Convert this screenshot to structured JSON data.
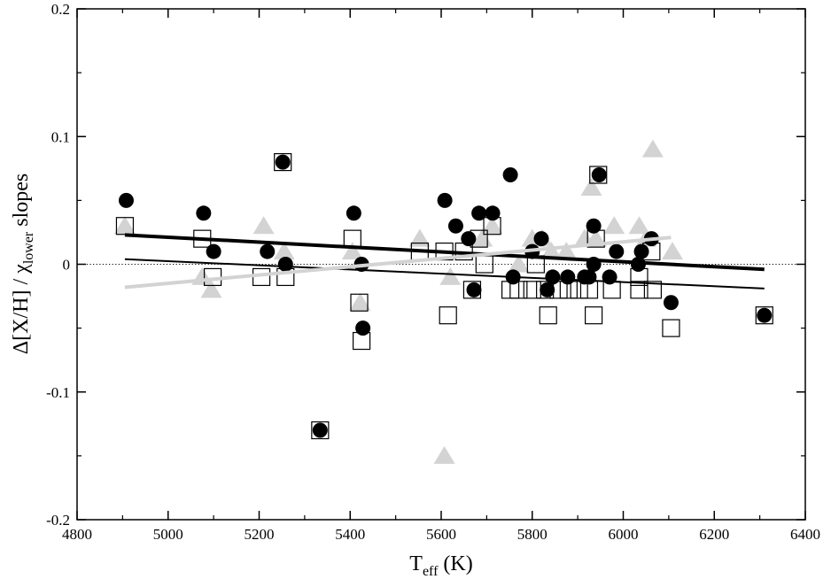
{
  "chart_data": {
    "type": "scatter",
    "xlabel": {
      "main": "T",
      "sub": "eff",
      "unit": " (K)"
    },
    "ylabel": {
      "pre": "Δ[X/H]  /  χ",
      "sub": "lower",
      "post": "  slopes"
    },
    "xlim": [
      4800,
      6400
    ],
    "ylim": [
      -0.2,
      0.2
    ],
    "x_ticks": [
      4800,
      5000,
      5200,
      5400,
      5600,
      5800,
      6000,
      6200,
      6400
    ],
    "y_ticks": [
      -0.2,
      -0.1,
      0,
      0.1,
      0.2
    ],
    "x_tick_labels": [
      "4800",
      "5000",
      "5200",
      "5400",
      "5600",
      "5800",
      "6000",
      "6200",
      "6400"
    ],
    "y_tick_labels": [
      "-0.2",
      "-0.1",
      "0",
      "0.1",
      "0.2"
    ],
    "zero_line": {
      "y": 0,
      "style": "dotted"
    },
    "series": [
      {
        "marker": "circle-filled",
        "color": "#000000",
        "points": [
          [
            4908,
            0.05
          ],
          [
            5078,
            0.04
          ],
          [
            5100,
            0.01
          ],
          [
            5218,
            0.01
          ],
          [
            5252,
            0.08
          ],
          [
            5258,
            0.0
          ],
          [
            5334,
            -0.13
          ],
          [
            5408,
            0.04
          ],
          [
            5428,
            -0.05
          ],
          [
            5425,
            0.0
          ],
          [
            5608,
            0.05
          ],
          [
            5632,
            0.03
          ],
          [
            5660,
            0.02
          ],
          [
            5672,
            -0.02
          ],
          [
            5683,
            0.04
          ],
          [
            5713,
            0.04
          ],
          [
            5752,
            0.07
          ],
          [
            5758,
            -0.01
          ],
          [
            5800,
            0.01
          ],
          [
            5820,
            0.02
          ],
          [
            5833,
            -0.02
          ],
          [
            5845,
            -0.01
          ],
          [
            5878,
            -0.01
          ],
          [
            5915,
            -0.01
          ],
          [
            5925,
            -0.01
          ],
          [
            5935,
            0.0
          ],
          [
            5935,
            0.03
          ],
          [
            5947,
            0.07
          ],
          [
            5970,
            -0.01
          ],
          [
            5985,
            0.01
          ],
          [
            6033,
            0.0
          ],
          [
            6040,
            0.01
          ],
          [
            6062,
            0.02
          ],
          [
            6105,
            -0.03
          ],
          [
            6310,
            -0.04
          ]
        ]
      },
      {
        "marker": "square-open",
        "color": "#000000",
        "points": [
          [
            4905,
            0.03
          ],
          [
            5075,
            0.02
          ],
          [
            5098,
            -0.01
          ],
          [
            5205,
            -0.01
          ],
          [
            5252,
            0.08
          ],
          [
            5258,
            -0.01
          ],
          [
            5334,
            -0.13
          ],
          [
            5405,
            0.02
          ],
          [
            5420,
            -0.03
          ],
          [
            5425,
            -0.06
          ],
          [
            5553,
            0.01
          ],
          [
            5607,
            0.01
          ],
          [
            5615,
            -0.04
          ],
          [
            5650,
            0.01
          ],
          [
            5668,
            -0.02
          ],
          [
            5683,
            0.02
          ],
          [
            5695,
            0.0
          ],
          [
            5712,
            0.03
          ],
          [
            5752,
            -0.02
          ],
          [
            5770,
            -0.02
          ],
          [
            5800,
            -0.02
          ],
          [
            5808,
            0.0
          ],
          [
            5828,
            -0.02
          ],
          [
            5835,
            -0.04
          ],
          [
            5858,
            -0.02
          ],
          [
            5880,
            -0.02
          ],
          [
            5903,
            -0.02
          ],
          [
            5925,
            -0.02
          ],
          [
            5935,
            -0.04
          ],
          [
            5945,
            0.07
          ],
          [
            5940,
            0.02
          ],
          [
            5975,
            -0.02
          ],
          [
            6035,
            -0.01
          ],
          [
            6035,
            -0.02
          ],
          [
            6062,
            0.01
          ],
          [
            6065,
            -0.02
          ],
          [
            6105,
            -0.05
          ],
          [
            6310,
            -0.04
          ]
        ]
      },
      {
        "marker": "triangle-filled",
        "color": "#d3d3d3",
        "points": [
          [
            4905,
            0.03
          ],
          [
            5075,
            -0.01
          ],
          [
            5095,
            -0.02
          ],
          [
            5210,
            0.03
          ],
          [
            5255,
            0.01
          ],
          [
            5405,
            0.01
          ],
          [
            5422,
            -0.03
          ],
          [
            5553,
            0.02
          ],
          [
            5607,
            -0.15
          ],
          [
            5620,
            -0.01
          ],
          [
            5690,
            0.02
          ],
          [
            5712,
            0.03
          ],
          [
            5770,
            0.0
          ],
          [
            5800,
            0.02
          ],
          [
            5822,
            0.02
          ],
          [
            5842,
            0.01
          ],
          [
            5875,
            0.01
          ],
          [
            5915,
            0.02
          ],
          [
            5930,
            0.06
          ],
          [
            5940,
            0.02
          ],
          [
            5980,
            0.03
          ],
          [
            6035,
            0.03
          ],
          [
            6050,
            0.02
          ],
          [
            6065,
            0.09
          ],
          [
            6108,
            0.01
          ]
        ]
      }
    ],
    "fit_lines": [
      {
        "x": [
          4905,
          6310
        ],
        "y": [
          0.023,
          -0.004
        ],
        "color": "#000000",
        "weight": "thick"
      },
      {
        "x": [
          4905,
          6310
        ],
        "y": [
          0.004,
          -0.019
        ],
        "color": "#000000",
        "weight": "thin"
      },
      {
        "x": [
          4905,
          6105
        ],
        "y": [
          -0.018,
          0.021
        ],
        "color": "#d3d3d3",
        "weight": "thick"
      }
    ]
  }
}
